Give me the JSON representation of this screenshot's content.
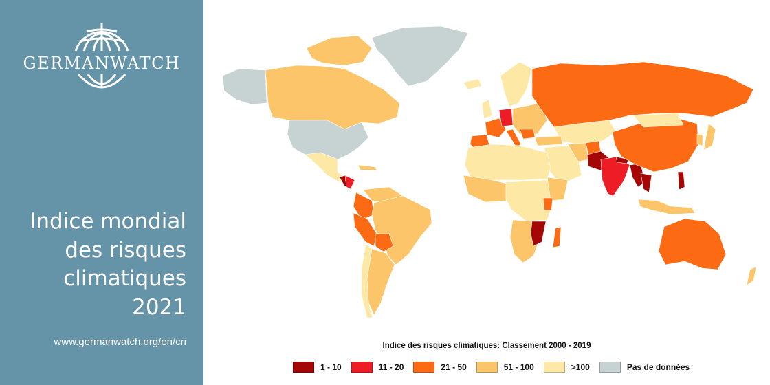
{
  "sidebar": {
    "logo_text": "GERMANWATCH",
    "title_lines": [
      "Indice mondial",
      "des risques",
      "climatiques",
      "2021"
    ],
    "url": "www.germanwatch.org/en/cri"
  },
  "legend": {
    "title": "Indice des risques climatiques: Classement 2000 - 2019",
    "items": [
      {
        "label": "1 - 10",
        "color": "#a50606"
      },
      {
        "label": "11 - 20",
        "color": "#ee1c25"
      },
      {
        "label": "21 - 50",
        "color": "#fd6a14"
      },
      {
        "label": "51 - 100",
        "color": "#fdc569"
      },
      {
        "label": ">100",
        "color": "#fee8a5"
      },
      {
        "label": "Pas de données",
        "color": "#c7d3d3"
      }
    ]
  },
  "map_icon": "world-choropleth-map"
}
